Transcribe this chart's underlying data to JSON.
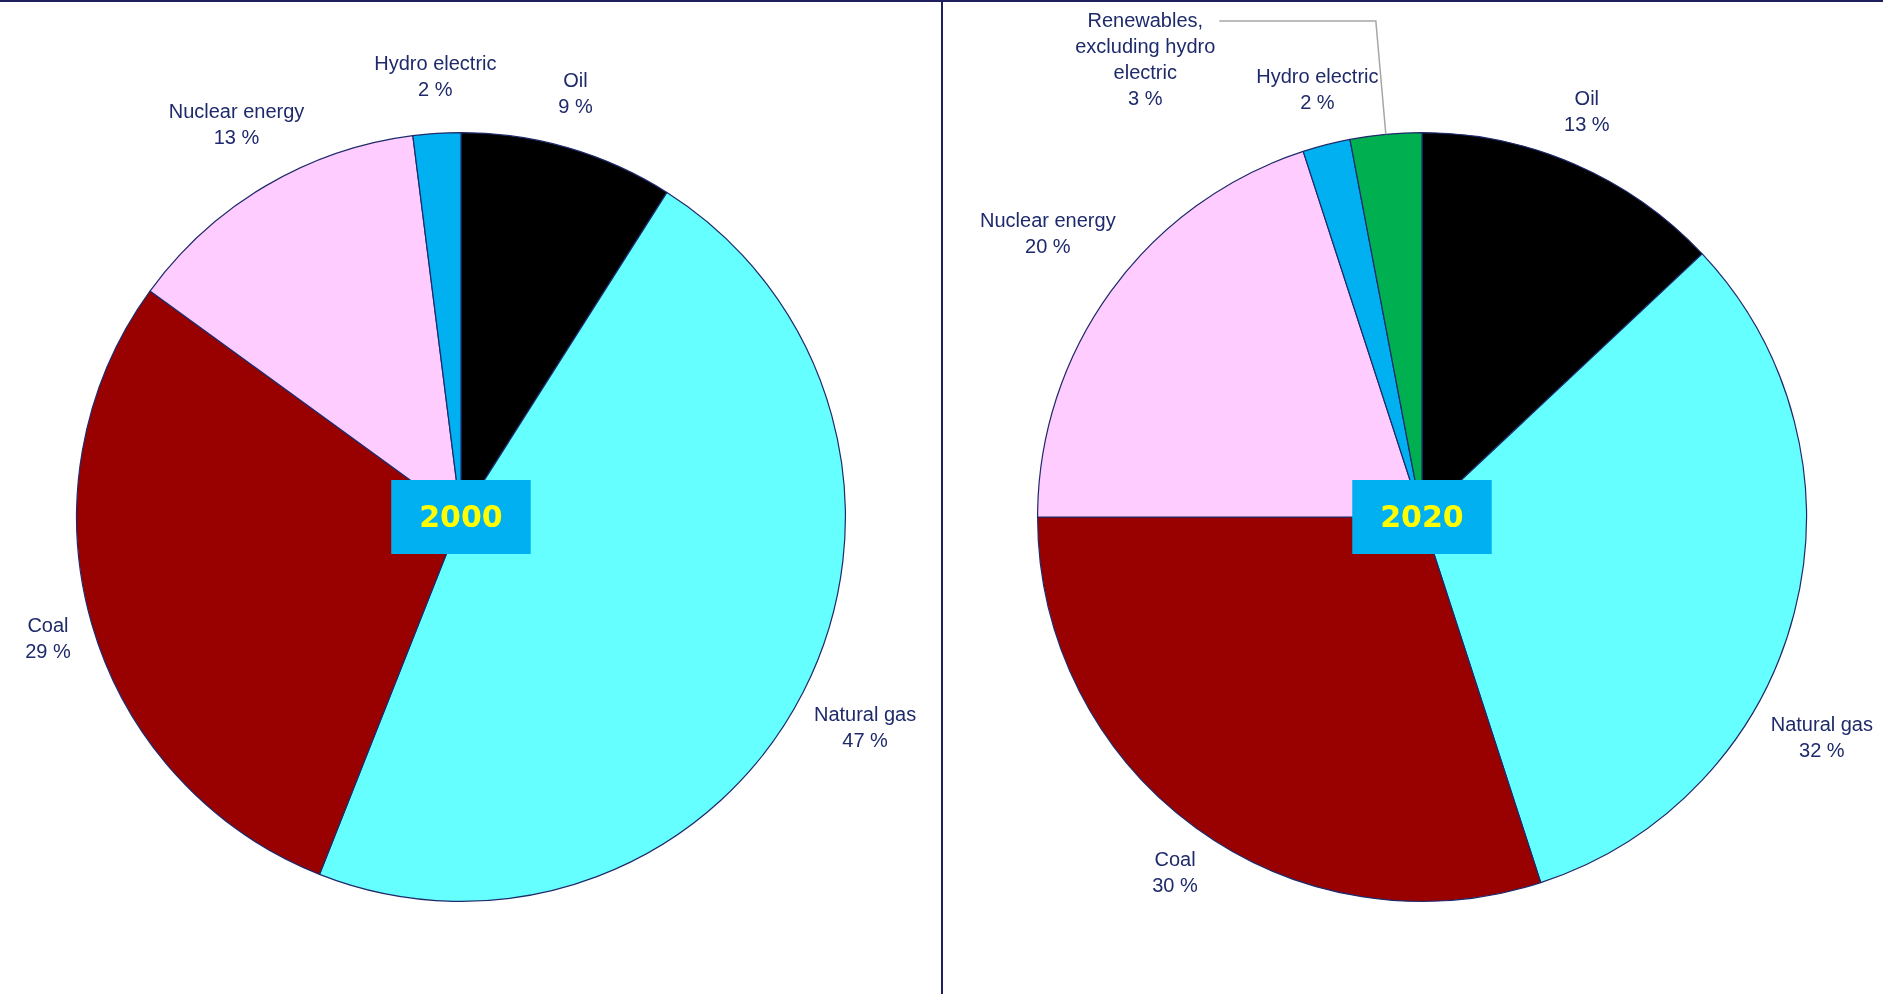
{
  "chart_data": [
    {
      "type": "pie",
      "title": "2000",
      "categories": [
        "Oil",
        "Natural gas",
        "Coal",
        "Nuclear energy",
        "Hydro electric"
      ],
      "values": [
        9,
        47,
        29,
        13,
        2
      ],
      "value_labels": [
        "9 %",
        "47 %",
        "29 %",
        "13 %",
        "2 %"
      ],
      "colors": [
        "#000000",
        "#66ffff",
        "#990000",
        "#ffccff",
        "#00b0f0"
      ]
    },
    {
      "type": "pie",
      "title": "2020",
      "categories": [
        "Oil",
        "Natural gas",
        "Coal",
        "Nuclear energy",
        "Hydro electric",
        "Renewables, excluding hydro electric"
      ],
      "values": [
        13,
        32,
        30,
        20,
        2,
        3
      ],
      "value_labels": [
        "13 %",
        "32 %",
        "30 %",
        "20 %",
        "2 %",
        "3 %"
      ],
      "colors": [
        "#000000",
        "#66ffff",
        "#990000",
        "#ffccff",
        "#00b0f0",
        "#00b050"
      ]
    }
  ]
}
